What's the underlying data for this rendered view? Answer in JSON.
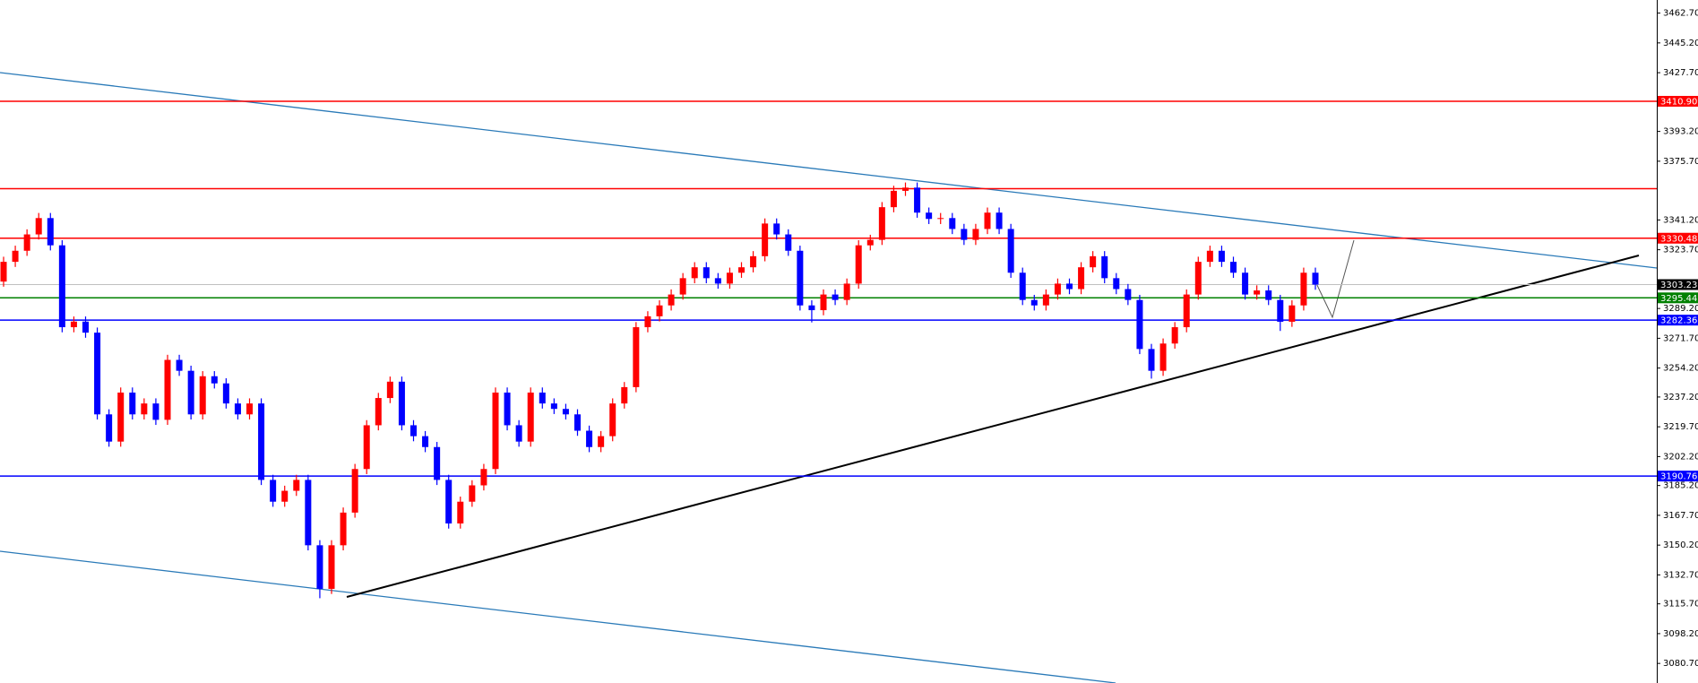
{
  "chart_data": {
    "type": "candlestick",
    "up_color": "#ff0000",
    "down_color": "#0000ff",
    "ylim": [
      3069.2,
      3470.4
    ],
    "yticks": [
      {
        "value": 3462.7,
        "label": "3462.70"
      },
      {
        "value": 3445.2,
        "label": "3445.20"
      },
      {
        "value": 3427.7,
        "label": "3427.70"
      },
      {
        "value": 3393.2,
        "label": "3393.20"
      },
      {
        "value": 3375.7,
        "label": "3375.70"
      },
      {
        "value": 3341.2,
        "label": "3341.20"
      },
      {
        "value": 3323.7,
        "label": "3323.70"
      },
      {
        "value": 3289.2,
        "label": "3289.20"
      },
      {
        "value": 3271.7,
        "label": "3271.70"
      },
      {
        "value": 3254.2,
        "label": "3254.20"
      },
      {
        "value": 3237.2,
        "label": "3237.20"
      },
      {
        "value": 3219.7,
        "label": "3219.70"
      },
      {
        "value": 3202.2,
        "label": "3202.20"
      },
      {
        "value": 3185.2,
        "label": "3185.20"
      },
      {
        "value": 3167.7,
        "label": "3167.70"
      },
      {
        "value": 3150.2,
        "label": "3150.20"
      },
      {
        "value": 3132.7,
        "label": "3132.70"
      },
      {
        "value": 3115.7,
        "label": "3115.70"
      },
      {
        "value": 3098.2,
        "label": "3098.20"
      },
      {
        "value": 3080.7,
        "label": "3080.70"
      }
    ],
    "levels": [
      {
        "value": 3410.9,
        "label": "3410.90",
        "color": "#ff0000"
      },
      {
        "value": 3359.6,
        "color": "#ff0000"
      },
      {
        "value": 3330.48,
        "label": "3330.48",
        "color": "#ff0000"
      },
      {
        "value": 3295.44,
        "label": "3295.44",
        "color": "#008000"
      },
      {
        "value": 3282.36,
        "label": "3282.36",
        "color": "#0000ff"
      },
      {
        "value": 3190.76,
        "label": "3190.76",
        "color": "#0000ff"
      }
    ],
    "current_price": {
      "value": 3303.23,
      "label": "3303.23",
      "color": "#c0c0c0"
    },
    "open": [
      3305.0,
      3316.6,
      3323.1,
      3332.7,
      3342.3,
      3326.3,
      3278.2,
      3281.5,
      3275.0,
      3227.0,
      3211.0,
      3239.8,
      3227.0,
      3233.4,
      3223.8,
      3259.0,
      3252.6,
      3227.0,
      3249.4,
      3245.2,
      3233.4,
      3227.0,
      3233.4,
      3188.5,
      3175.7,
      3182.1,
      3188.5,
      3150.1,
      3124.5,
      3150.1,
      3169.3,
      3194.9,
      3220.6,
      3236.6,
      3246.2,
      3220.6,
      3214.2,
      3207.8,
      3188.5,
      3162.9,
      3175.7,
      3185.3,
      3194.9,
      3239.8,
      3220.6,
      3211.0,
      3239.8,
      3233.4,
      3230.2,
      3227.0,
      3217.4,
      3207.8,
      3214.2,
      3233.4,
      3243.0,
      3278.2,
      3284.6,
      3291.0,
      3297.4,
      3307.0,
      3313.4,
      3307.0,
      3303.8,
      3310.2,
      3313.4,
      3319.9,
      3339.1,
      3332.7,
      3323.1,
      3291.0,
      3288.2,
      3297.4,
      3294.2,
      3303.8,
      3326.3,
      3329.5,
      3348.7,
      3358.3,
      3360.2,
      3345.5,
      3341.8,
      3342.3,
      3335.9,
      3329.5,
      3335.9,
      3345.5,
      3335.9,
      3310.2,
      3294.2,
      3291.0,
      3297.4,
      3303.8,
      3300.6,
      3313.4,
      3319.9,
      3307.0,
      3300.6,
      3294.2,
      3265.4,
      3252.6,
      3268.6,
      3278.2,
      3297.4,
      3316.6,
      3323.1,
      3316.6,
      3310.2,
      3297.4,
      3299.8,
      3294.2,
      3281.4,
      3291.0,
      3310.2
    ],
    "high": [
      3319.6,
      3326.1,
      3335.7,
      3345.3,
      3345.3,
      3329.3,
      3284.5,
      3284.5,
      3278.0,
      3230.0,
      3242.8,
      3242.8,
      3236.4,
      3236.4,
      3262.0,
      3262.0,
      3255.6,
      3252.4,
      3252.4,
      3248.2,
      3236.4,
      3236.4,
      3236.4,
      3191.5,
      3185.1,
      3191.5,
      3191.5,
      3153.1,
      3153.1,
      3172.3,
      3197.9,
      3223.6,
      3239.6,
      3249.2,
      3249.2,
      3223.6,
      3217.2,
      3210.8,
      3191.5,
      3178.7,
      3188.3,
      3197.9,
      3242.8,
      3242.8,
      3223.6,
      3242.8,
      3242.8,
      3236.4,
      3233.2,
      3230.0,
      3220.4,
      3217.2,
      3236.4,
      3246.0,
      3281.2,
      3287.6,
      3294.0,
      3300.4,
      3310.0,
      3316.4,
      3316.4,
      3310.0,
      3313.2,
      3316.4,
      3322.9,
      3342.1,
      3342.1,
      3335.7,
      3326.1,
      3294.0,
      3300.4,
      3300.4,
      3306.8,
      3329.3,
      3332.5,
      3351.7,
      3361.3,
      3363.2,
      3363.2,
      3348.5,
      3345.3,
      3345.3,
      3338.9,
      3338.9,
      3348.5,
      3348.5,
      3338.9,
      3313.2,
      3297.2,
      3300.4,
      3306.8,
      3306.8,
      3316.4,
      3322.9,
      3322.9,
      3310.0,
      3303.6,
      3297.2,
      3268.4,
      3271.6,
      3281.2,
      3300.4,
      3319.6,
      3326.1,
      3326.1,
      3319.6,
      3313.2,
      3302.8,
      3302.8,
      3297.2,
      3294.0,
      3313.2,
      3313.2
    ],
    "low": [
      3302.0,
      3313.6,
      3320.1,
      3329.7,
      3323.3,
      3275.2,
      3275.2,
      3272.0,
      3224.0,
      3208.0,
      3208.0,
      3224.0,
      3224.0,
      3220.8,
      3220.8,
      3249.6,
      3224.0,
      3224.0,
      3242.2,
      3230.4,
      3224.0,
      3224.0,
      3185.5,
      3172.7,
      3172.7,
      3179.1,
      3147.1,
      3119.0,
      3121.5,
      3147.1,
      3166.3,
      3191.9,
      3217.6,
      3233.6,
      3217.6,
      3211.2,
      3204.8,
      3185.5,
      3159.9,
      3159.9,
      3172.7,
      3182.3,
      3191.9,
      3217.6,
      3208.0,
      3208.0,
      3230.4,
      3227.2,
      3224.0,
      3214.4,
      3204.8,
      3204.8,
      3211.2,
      3230.4,
      3240.0,
      3275.2,
      3281.6,
      3288.0,
      3294.4,
      3304.0,
      3304.0,
      3300.8,
      3300.8,
      3307.2,
      3310.4,
      3316.9,
      3329.7,
      3320.1,
      3288.0,
      3281.0,
      3285.2,
      3291.2,
      3291.2,
      3300.8,
      3323.3,
      3326.5,
      3345.7,
      3355.3,
      3342.5,
      3338.8,
      3338.8,
      3332.9,
      3326.5,
      3326.5,
      3332.9,
      3332.9,
      3307.2,
      3291.2,
      3288.0,
      3288.0,
      3294.4,
      3297.6,
      3297.6,
      3310.4,
      3304.0,
      3297.6,
      3291.2,
      3262.4,
      3248.0,
      3249.6,
      3265.6,
      3275.2,
      3294.4,
      3313.6,
      3313.6,
      3307.2,
      3294.4,
      3294.4,
      3291.2,
      3276.0,
      3278.4,
      3288.0,
      3300.2
    ],
    "close": [
      3316.6,
      3323.1,
      3332.7,
      3342.3,
      3326.3,
      3278.2,
      3281.5,
      3275.0,
      3227.0,
      3211.0,
      3239.8,
      3227.0,
      3233.4,
      3223.8,
      3259.0,
      3252.6,
      3227.0,
      3249.4,
      3245.2,
      3233.4,
      3227.0,
      3233.4,
      3188.5,
      3175.7,
      3182.1,
      3188.5,
      3150.1,
      3124.5,
      3150.1,
      3169.3,
      3194.9,
      3220.6,
      3236.6,
      3246.2,
      3220.6,
      3214.2,
      3207.8,
      3188.5,
      3162.9,
      3175.7,
      3185.3,
      3194.9,
      3239.8,
      3220.6,
      3211.0,
      3239.8,
      3233.4,
      3230.2,
      3227.0,
      3217.4,
      3207.8,
      3214.2,
      3233.4,
      3243.0,
      3278.2,
      3284.6,
      3291.0,
      3297.4,
      3307.0,
      3313.4,
      3307.0,
      3303.8,
      3310.2,
      3313.4,
      3319.9,
      3339.1,
      3332.7,
      3323.1,
      3291.0,
      3288.2,
      3297.4,
      3294.2,
      3303.8,
      3326.3,
      3329.5,
      3348.7,
      3358.3,
      3360.2,
      3345.5,
      3341.8,
      3342.3,
      3335.9,
      3329.5,
      3335.9,
      3345.5,
      3335.9,
      3310.2,
      3294.2,
      3291.0,
      3297.4,
      3303.8,
      3300.6,
      3313.4,
      3319.9,
      3307.0,
      3300.6,
      3294.2,
      3265.4,
      3252.6,
      3268.6,
      3278.2,
      3297.4,
      3316.6,
      3323.1,
      3316.6,
      3310.2,
      3297.4,
      3299.8,
      3294.2,
      3281.4,
      3291.0,
      3310.2,
      3303.2
    ]
  }
}
